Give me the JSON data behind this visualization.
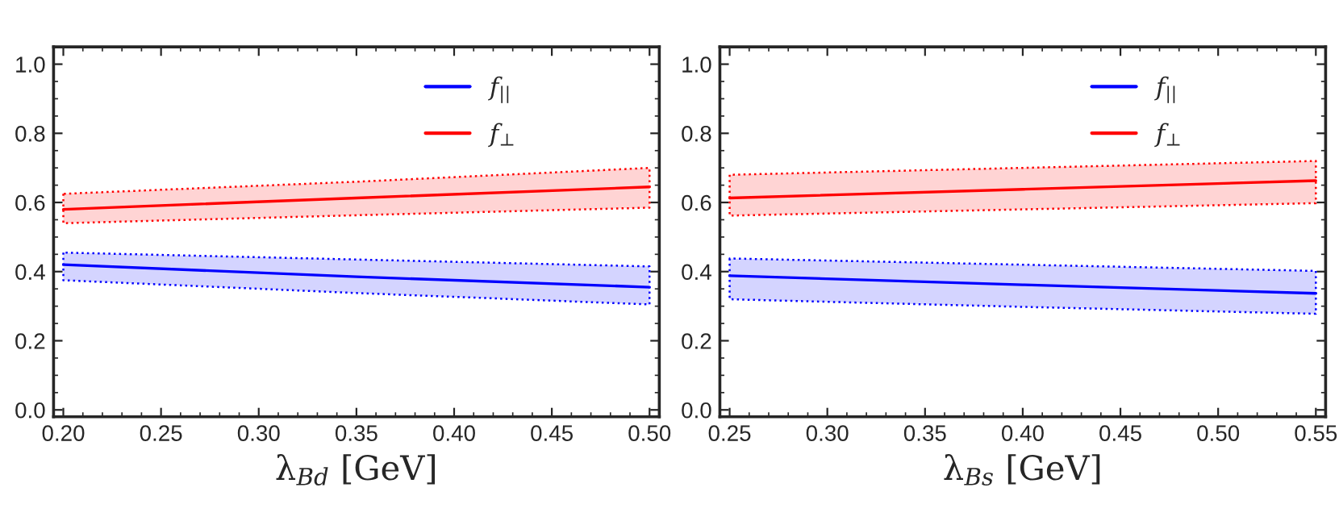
{
  "chart_data": [
    {
      "type": "line",
      "xlabel": "λ$_{Bd}$ [GeV]",
      "xlim": [
        0.195,
        0.505
      ],
      "xticks": [
        {
          "value": 0.2,
          "label": "0.20"
        },
        {
          "value": 0.25,
          "label": "0.25"
        },
        {
          "value": 0.3,
          "label": "0.30"
        },
        {
          "value": 0.35,
          "label": "0.35"
        },
        {
          "value": 0.4,
          "label": "0.40"
        },
        {
          "value": 0.45,
          "label": "0.45"
        },
        {
          "value": 0.5,
          "label": "0.50"
        }
      ],
      "ylim": [
        -0.02,
        1.05
      ],
      "yticks": [
        {
          "value": 0,
          "label": "0.0"
        },
        {
          "value": 0.2,
          "label": "0.2"
        },
        {
          "value": 0.4,
          "label": "0.4"
        },
        {
          "value": 0.6,
          "label": "0.6"
        },
        {
          "value": 0.8,
          "label": "0.8"
        },
        {
          "value": 1,
          "label": "1.0"
        }
      ],
      "legend": "top right",
      "grid": false,
      "line_style": "solid",
      "marker": "none",
      "series": [
        {
          "name": "f$_{||}$",
          "color": "#0000ff",
          "x": [
            0.2,
            0.35,
            0.5
          ],
          "values": [
            0.42,
            0.385,
            0.355
          ],
          "lower": [
            0.375,
            0.338,
            0.305
          ],
          "upper": [
            0.455,
            0.435,
            0.415
          ]
        },
        {
          "name": "f$_{⊥}$",
          "color": "#ff0000",
          "x": [
            0.2,
            0.35,
            0.5
          ],
          "values": [
            0.58,
            0.613,
            0.645
          ],
          "lower": [
            0.54,
            0.563,
            0.585
          ],
          "upper": [
            0.625,
            0.66,
            0.7
          ]
        }
      ]
    },
    {
      "type": "line",
      "xlabel": "λ$_{Bs}$ [GeV]",
      "xlim": [
        0.245,
        0.555
      ],
      "xticks": [
        {
          "value": 0.25,
          "label": "0.25"
        },
        {
          "value": 0.3,
          "label": "0.30"
        },
        {
          "value": 0.35,
          "label": "0.35"
        },
        {
          "value": 0.4,
          "label": "0.40"
        },
        {
          "value": 0.45,
          "label": "0.45"
        },
        {
          "value": 0.5,
          "label": "0.50"
        },
        {
          "value": 0.55,
          "label": "0.55"
        }
      ],
      "ylim": [
        -0.02,
        1.05
      ],
      "yticks": [
        {
          "value": 0,
          "label": "0.0"
        },
        {
          "value": 0.2,
          "label": "0.2"
        },
        {
          "value": 0.4,
          "label": "0.4"
        },
        {
          "value": 0.6,
          "label": "0.6"
        },
        {
          "value": 0.8,
          "label": "0.8"
        },
        {
          "value": 1,
          "label": "1.0"
        }
      ],
      "legend": "top right",
      "grid": false,
      "line_style": "solid",
      "marker": "none",
      "series": [
        {
          "name": "f$_{||}$",
          "color": "#0000ff",
          "x": [
            0.25,
            0.4,
            0.55
          ],
          "values": [
            0.388,
            0.362,
            0.337
          ],
          "lower": [
            0.32,
            0.298,
            0.278
          ],
          "upper": [
            0.438,
            0.42,
            0.402
          ]
        },
        {
          "name": "f$_{⊥}$",
          "color": "#ff0000",
          "x": [
            0.25,
            0.4,
            0.55
          ],
          "values": [
            0.613,
            0.638,
            0.663
          ],
          "lower": [
            0.562,
            0.58,
            0.598
          ],
          "upper": [
            0.68,
            0.7,
            0.72
          ]
        }
      ]
    }
  ]
}
